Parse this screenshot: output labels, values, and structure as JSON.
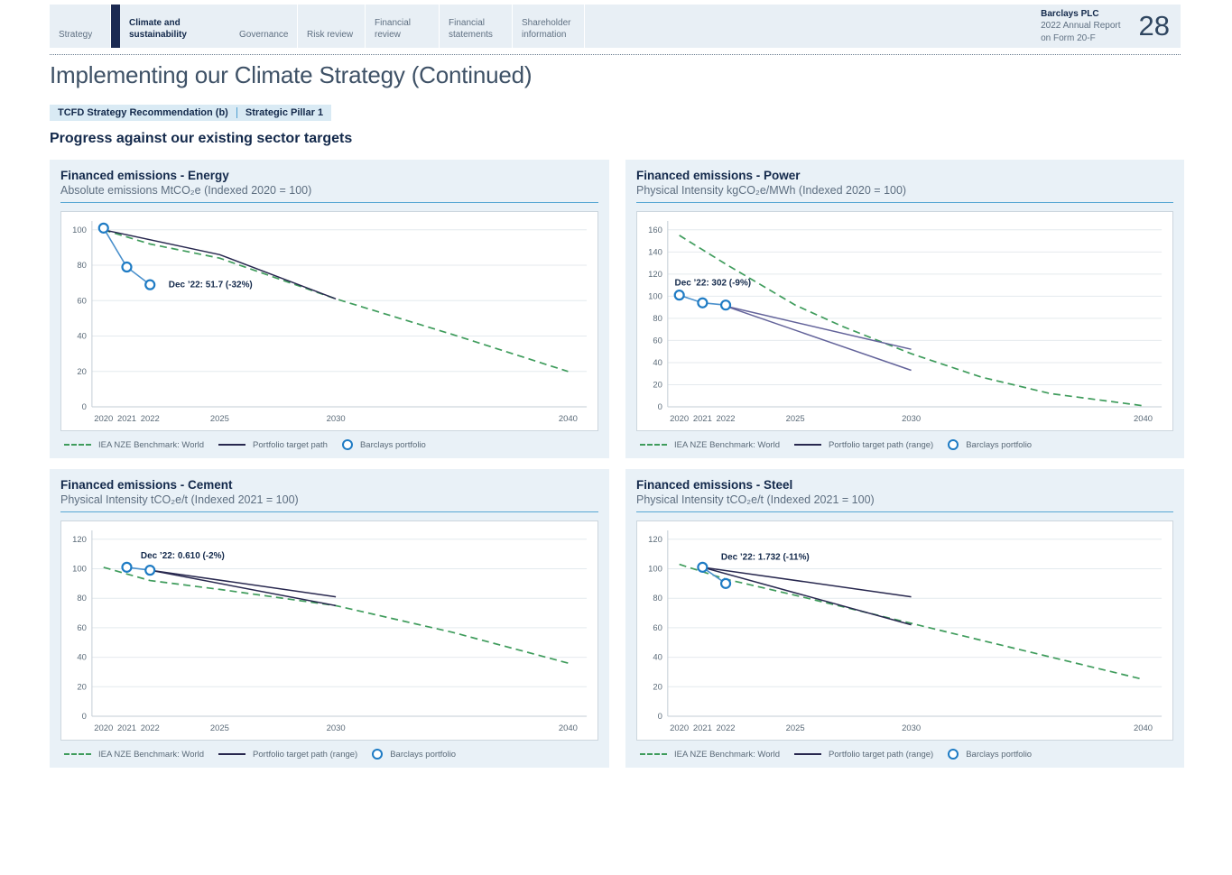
{
  "header": {
    "tabs": [
      {
        "label": "Strategy",
        "active": false
      },
      {
        "label": "Climate and sustainability",
        "active": true
      },
      {
        "label": "Governance",
        "active": false
      },
      {
        "label": "Risk review",
        "active": false
      },
      {
        "label": "Financial review",
        "active": false
      },
      {
        "label": "Financial statements",
        "active": false
      },
      {
        "label": "Shareholder information",
        "active": false
      }
    ],
    "brand_name": "Barclays PLC",
    "brand_line2": "2022 Annual Report",
    "brand_line3": "on Form 20-F",
    "page_number": "28"
  },
  "page_title": "Implementing our Climate Strategy (Continued)",
  "badges": {
    "tcfd": "TCFD Strategy Recommendation (b)",
    "pillar": "Strategic Pillar 1"
  },
  "section_heading": "Progress against our existing sector targets",
  "palette": {
    "benchmark_green": "#3f9c5c",
    "target_navy": "#28284f",
    "target_light": "#63639a",
    "portfolio_blue": "#1e7bc4",
    "portfolio_line_blue": "#4a90cc",
    "panel_bg": "#e9f1f7",
    "nav_bg": "#e8eff5",
    "accent_rule": "#57a7d4",
    "badge_bg": "#d9eaf4",
    "heading_navy": "#13294b"
  },
  "chart_data": [
    {
      "type": "line",
      "title": "Financed emissions - Energy",
      "subtitle": "Absolute emissions MtCO₂e (Indexed 2020 = 100)",
      "ylim": [
        0,
        100
      ],
      "ymax_display": 105,
      "yticks": [
        0,
        20,
        40,
        60,
        80,
        100
      ],
      "xticks": [
        2020,
        2021,
        2022,
        2025,
        2030,
        2040
      ],
      "xdomain": [
        2019.5,
        2040.8
      ],
      "benchmark": [
        [
          2020,
          100
        ],
        [
          2022,
          92
        ],
        [
          2025,
          84
        ],
        [
          2030,
          61
        ],
        [
          2035,
          41
        ],
        [
          2040,
          20
        ]
      ],
      "target": [
        [
          [
            2020,
            100
          ],
          [
            2025,
            86
          ],
          [
            2030,
            61
          ]
        ]
      ],
      "portfolio": [
        [
          2020,
          101
        ],
        [
          2021,
          79
        ],
        [
          2022,
          69
        ]
      ],
      "target_color": "#28284f",
      "annotation": {
        "text": "Dec ’22: 51.7 (-32%)",
        "x": 2022.8,
        "y": 69
      },
      "legend": [
        "IEA NZE Benchmark: World",
        "Portfolio target path",
        "Barclays portfolio"
      ]
    },
    {
      "type": "line",
      "title": "Financed emissions - Power",
      "subtitle": "Physical Intensity kgCO₂e/MWh (Indexed 2020 = 100)",
      "ylim": [
        0,
        160
      ],
      "ymax_display": 168,
      "yticks": [
        0,
        20,
        40,
        60,
        80,
        100,
        120,
        140,
        160
      ],
      "xticks": [
        2020,
        2021,
        2022,
        2025,
        2030,
        2040
      ],
      "xdomain": [
        2019.5,
        2040.8
      ],
      "benchmark": [
        [
          2020,
          155
        ],
        [
          2022,
          129
        ],
        [
          2025,
          92
        ],
        [
          2027,
          73
        ],
        [
          2030,
          48
        ],
        [
          2033,
          27
        ],
        [
          2036,
          12
        ],
        [
          2040,
          1
        ]
      ],
      "target": [
        [
          [
            2022,
            91
          ],
          [
            2030,
            52
          ]
        ],
        [
          [
            2022,
            91
          ],
          [
            2030,
            33
          ]
        ]
      ],
      "portfolio": [
        [
          2020,
          101
        ],
        [
          2021,
          94
        ],
        [
          2022,
          92
        ]
      ],
      "target_color": "#63639a",
      "annotation": {
        "text": "Dec ’22: 302 (-9%)",
        "x": 2019.8,
        "y": 112
      },
      "legend": [
        "IEA NZE Benchmark: World",
        "Portfolio target path (range)",
        "Barclays portfolio"
      ]
    },
    {
      "type": "line",
      "title": "Financed emissions - Cement",
      "subtitle": "Physical Intensity tCO₂e/t (Indexed 2021 = 100)",
      "ylim": [
        0,
        120
      ],
      "ymax_display": 126,
      "yticks": [
        0,
        20,
        40,
        60,
        80,
        100,
        120
      ],
      "xticks": [
        2020,
        2021,
        2022,
        2025,
        2030,
        2040
      ],
      "xdomain": [
        2019.5,
        2040.8
      ],
      "benchmark": [
        [
          2020,
          101
        ],
        [
          2022,
          92
        ],
        [
          2025,
          86
        ],
        [
          2030,
          75
        ],
        [
          2035,
          57
        ],
        [
          2040,
          36
        ]
      ],
      "target": [
        [
          [
            2022,
            99
          ],
          [
            2030,
            81
          ]
        ],
        [
          [
            2022,
            99
          ],
          [
            2030,
            75
          ]
        ]
      ],
      "portfolio": [
        [
          2021,
          101
        ],
        [
          2022,
          99
        ]
      ],
      "target_color": "#28284f",
      "annotation": {
        "text": "Dec ’22: 0.610 (-2%)",
        "x": 2021.6,
        "y": 109
      },
      "legend": [
        "IEA NZE Benchmark: World",
        "Portfolio target path (range)",
        "Barclays portfolio"
      ]
    },
    {
      "type": "line",
      "title": "Financed emissions - Steel",
      "subtitle": "Physical Intensity tCO₂e/t (Indexed 2021 = 100)",
      "ylim": [
        0,
        120
      ],
      "ymax_display": 126,
      "yticks": [
        0,
        20,
        40,
        60,
        80,
        100,
        120
      ],
      "xticks": [
        2020,
        2021,
        2022,
        2025,
        2030,
        2040
      ],
      "xdomain": [
        2019.5,
        2040.8
      ],
      "benchmark": [
        [
          2020,
          103
        ],
        [
          2022,
          93
        ],
        [
          2025,
          82
        ],
        [
          2030,
          63
        ],
        [
          2035,
          44
        ],
        [
          2040,
          25
        ]
      ],
      "target": [
        [
          [
            2021,
            101
          ],
          [
            2030,
            81
          ]
        ],
        [
          [
            2021,
            101
          ],
          [
            2030,
            62
          ]
        ]
      ],
      "portfolio": [
        [
          2021,
          101
        ],
        [
          2022,
          90
        ]
      ],
      "target_color": "#28284f",
      "annotation": {
        "text": "Dec ’22: 1.732 (-11%)",
        "x": 2021.8,
        "y": 108
      },
      "legend": [
        "IEA NZE Benchmark: World",
        "Portfolio target path (range)",
        "Barclays portfolio"
      ]
    }
  ]
}
